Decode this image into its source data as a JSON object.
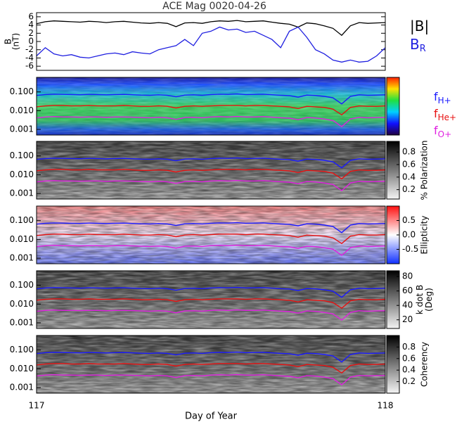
{
  "chart_data": [
    {
      "type": "line",
      "title": "ACE Mag 0020-04-26",
      "ylabel": [
        "B",
        "(nT)"
      ],
      "x": [
        117,
        117.025,
        117.05,
        117.075,
        117.1,
        117.125,
        117.15,
        117.175,
        117.2,
        117.225,
        117.25,
        117.275,
        117.3,
        117.325,
        117.35,
        117.375,
        117.4,
        117.425,
        117.45,
        117.475,
        117.5,
        117.525,
        117.55,
        117.575,
        117.6,
        117.625,
        117.65,
        117.675,
        117.7,
        117.725,
        117.75,
        117.775,
        117.8,
        117.825,
        117.85,
        117.875,
        117.9,
        117.925,
        117.95,
        117.975,
        118
      ],
      "xlim": [
        117,
        118
      ],
      "ylim": [
        -7,
        7
      ],
      "yticks": [
        -6,
        -4,
        -2,
        0,
        2,
        4,
        6
      ],
      "series": [
        {
          "name": "|B|",
          "color": "#000000",
          "values": [
            4.3,
            4.8,
            5.0,
            4.9,
            4.8,
            4.7,
            4.9,
            4.8,
            4.6,
            4.8,
            4.9,
            4.7,
            4.5,
            4.4,
            4.6,
            4.4,
            3.6,
            4.5,
            4.6,
            4.4,
            4.8,
            5.0,
            4.9,
            5.1,
            4.8,
            4.9,
            5.0,
            4.7,
            4.4,
            4.2,
            3.5,
            4.5,
            4.3,
            3.8,
            3.2,
            1.5,
            3.8,
            4.6,
            4.4,
            4.5,
            4.6
          ]
        },
        {
          "name": "B",
          "subscript": "R",
          "color": "#1f1fe0",
          "values": [
            -3.5,
            -1.5,
            -3.0,
            -3.5,
            -3.2,
            -3.8,
            -4.0,
            -3.5,
            -3.0,
            -2.8,
            -3.2,
            -2.5,
            -2.8,
            -3.0,
            -2.0,
            -1.5,
            -1.0,
            0.5,
            -1.0,
            2.0,
            2.5,
            3.5,
            2.8,
            3.0,
            2.2,
            2.5,
            1.5,
            0.5,
            -1.5,
            2.5,
            3.5,
            1.0,
            -2.0,
            -3.0,
            -4.5,
            -5.0,
            -4.5,
            -5.0,
            -4.8,
            -3.5,
            -1.5
          ]
        }
      ]
    },
    {
      "type": "spectrogram",
      "ylog": true,
      "ylim": [
        0.0005,
        0.6
      ],
      "yticks": [
        {
          "value": 0.001,
          "label": "0.001"
        },
        {
          "value": 0.01,
          "label": "0.010"
        },
        {
          "value": 0.1,
          "label": "0.100"
        }
      ],
      "colormap": "rainbow",
      "series": [
        {
          "name": "f",
          "subscript": "H+",
          "color": "#1a1aff",
          "values": [
            0.065,
            0.073,
            0.076,
            0.074,
            0.073,
            0.071,
            0.074,
            0.073,
            0.07,
            0.073,
            0.074,
            0.071,
            0.068,
            0.067,
            0.07,
            0.067,
            0.055,
            0.068,
            0.07,
            0.067,
            0.073,
            0.076,
            0.074,
            0.078,
            0.073,
            0.074,
            0.076,
            0.071,
            0.067,
            0.064,
            0.053,
            0.068,
            0.065,
            0.058,
            0.049,
            0.023,
            0.058,
            0.07,
            0.067,
            0.068,
            0.07
          ]
        },
        {
          "name": "f",
          "subscript": "He+",
          "color": "#e81010",
          "values": [
            0.016,
            0.018,
            0.019,
            0.019,
            0.018,
            0.018,
            0.019,
            0.018,
            0.018,
            0.018,
            0.019,
            0.018,
            0.017,
            0.017,
            0.018,
            0.017,
            0.014,
            0.017,
            0.018,
            0.017,
            0.018,
            0.019,
            0.019,
            0.019,
            0.018,
            0.019,
            0.019,
            0.018,
            0.017,
            0.016,
            0.013,
            0.017,
            0.016,
            0.015,
            0.012,
            0.006,
            0.015,
            0.018,
            0.017,
            0.017,
            0.018
          ]
        },
        {
          "name": "f",
          "subscript": "O+",
          "color": "#e020e0",
          "values": [
            0.0041,
            0.0046,
            0.0048,
            0.0046,
            0.0046,
            0.0045,
            0.0046,
            0.0046,
            0.0044,
            0.0046,
            0.0046,
            0.0045,
            0.0043,
            0.0042,
            0.0044,
            0.0042,
            0.0034,
            0.0043,
            0.0044,
            0.0042,
            0.0046,
            0.0048,
            0.0046,
            0.0049,
            0.0046,
            0.0046,
            0.0048,
            0.0045,
            0.0042,
            0.004,
            0.0033,
            0.0043,
            0.0041,
            0.0036,
            0.003,
            0.0014,
            0.0036,
            0.0044,
            0.0042,
            0.0043,
            0.0044
          ]
        }
      ]
    },
    {
      "type": "spectrogram",
      "ylog": true,
      "ylim": [
        0.0005,
        0.6
      ],
      "yticks": [
        {
          "value": 0.001,
          "label": "0.001"
        },
        {
          "value": 0.01,
          "label": "0.010"
        },
        {
          "value": 0.1,
          "label": "0.100"
        }
      ],
      "colormap": "gray",
      "colorbar_label": [
        "% Polarization"
      ],
      "clim": [
        0.05,
        0.97
      ],
      "colorbar_ticks": [
        0.2,
        0.4,
        0.6,
        0.8
      ]
    },
    {
      "type": "spectrogram",
      "ylog": true,
      "ylim": [
        0.0005,
        0.6
      ],
      "yticks": [
        {
          "value": 0.001,
          "label": "0.001"
        },
        {
          "value": 0.01,
          "label": "0.010"
        },
        {
          "value": 0.1,
          "label": "0.100"
        }
      ],
      "colormap": "bluewhitered",
      "colorbar_label": [
        "Ellipticity"
      ],
      "clim": [
        -1,
        1
      ],
      "colorbar_ticks": [
        -0.5,
        {
          "value": 0,
          "label": "0.0"
        },
        0.5
      ]
    },
    {
      "type": "spectrogram",
      "ylog": true,
      "ylim": [
        0.0005,
        0.6
      ],
      "yticks": [
        {
          "value": 0.001,
          "label": "0.001"
        },
        {
          "value": 0.01,
          "label": "0.010"
        },
        {
          "value": 0.1,
          "label": "0.100"
        }
      ],
      "colormap": "gray",
      "colorbar_label": [
        "k dot B",
        "(Deg)"
      ],
      "clim": [
        8,
        88
      ],
      "colorbar_ticks": [
        20,
        40,
        60,
        80
      ]
    },
    {
      "type": "spectrogram",
      "ylog": true,
      "ylim": [
        0.0005,
        0.6
      ],
      "yticks": [
        {
          "value": 0.001,
          "label": "0.001"
        },
        {
          "value": 0.01,
          "label": "0.010"
        },
        {
          "value": 0.1,
          "label": "0.100"
        }
      ],
      "colormap": "gray",
      "colorbar_label": [
        "Coherency"
      ],
      "clim": [
        0,
        1
      ],
      "colorbar_ticks": [
        0.2,
        0.4,
        0.6,
        0.8
      ],
      "xlabel": "Day of Year",
      "xticks": [
        117,
        118
      ]
    }
  ]
}
